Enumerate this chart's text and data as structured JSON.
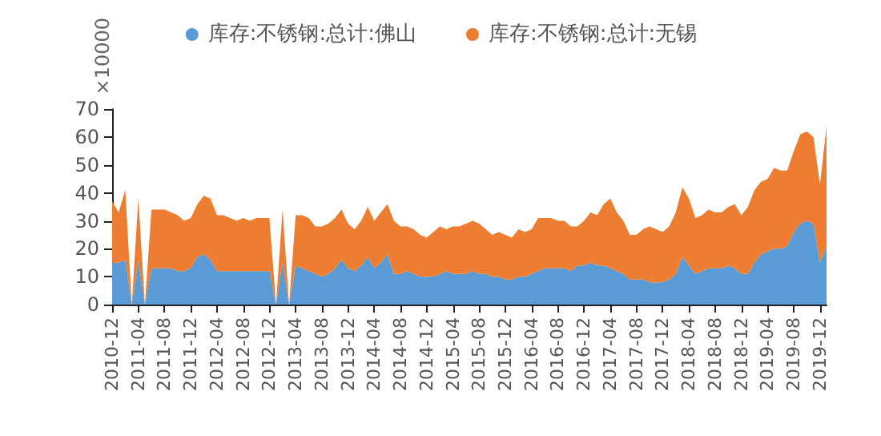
{
  "chart_data": {
    "type": "area",
    "stacked": true,
    "ylabel": "×10000",
    "ylim": [
      0,
      70
    ],
    "yticks": [
      0,
      10,
      20,
      30,
      40,
      50,
      60,
      70
    ],
    "grid": false,
    "legend": "top",
    "marker": "none",
    "categories": [
      "2010-12",
      null,
      null,
      null,
      "2011-04",
      null,
      null,
      null,
      "2011-08",
      null,
      null,
      null,
      "2011-12",
      null,
      null,
      null,
      "2012-04",
      null,
      null,
      null,
      "2012-08",
      null,
      null,
      null,
      "2012-12",
      null,
      null,
      null,
      "2013-04",
      null,
      null,
      null,
      "2013-08",
      null,
      null,
      null,
      "2013-12",
      null,
      null,
      null,
      "2014-04",
      null,
      null,
      null,
      "2014-08",
      null,
      null,
      null,
      "2014-12",
      null,
      null,
      null,
      "2015-04",
      null,
      null,
      null,
      "2015-08",
      null,
      null,
      null,
      "2015-12",
      null,
      null,
      null,
      "2016-04",
      null,
      null,
      null,
      "2016-08",
      null,
      null,
      null,
      "2016-12",
      null,
      null,
      null,
      "2017-04",
      null,
      null,
      null,
      "2017-08",
      null,
      null,
      null,
      "2017-12",
      null,
      null,
      null,
      "2018-04",
      null,
      null,
      null,
      "2018-08",
      null,
      null,
      null,
      "2018-12",
      null,
      null,
      null,
      "2019-04",
      null,
      null,
      null,
      "2019-08",
      null,
      null,
      null,
      "2019-12",
      null
    ],
    "series": [
      {
        "name": "库存:不锈钢:总计:佛山",
        "color": "#5b9bd5",
        "values": [
          15,
          15,
          16,
          0,
          16,
          0,
          13,
          13,
          13,
          13,
          12,
          12,
          13,
          17,
          18,
          16,
          12,
          12,
          12,
          12,
          12,
          12,
          12,
          12,
          12,
          0,
          15,
          0,
          14,
          13,
          12,
          11,
          10,
          11,
          13,
          16,
          13,
          12,
          14,
          17,
          13,
          15,
          18,
          11,
          11,
          12,
          11,
          10,
          10,
          10,
          11,
          12,
          11,
          11,
          11,
          12,
          11,
          11,
          10,
          10,
          9,
          9,
          10,
          10,
          11,
          12,
          13,
          13,
          13,
          13,
          12,
          14,
          14,
          15,
          14,
          14,
          13,
          12,
          11,
          9,
          9,
          9,
          8,
          8,
          8,
          9,
          11,
          17,
          14,
          11,
          12,
          13,
          13,
          13,
          14,
          13,
          11,
          11,
          15,
          18,
          19,
          20,
          20,
          21,
          26,
          29,
          30,
          29,
          15,
          21
        ]
      },
      {
        "name": "库存:不锈钢:总计:无锡",
        "color": "#ed7d31",
        "values": [
          22,
          18,
          25,
          0,
          22,
          0,
          21,
          21,
          21,
          20,
          20,
          18,
          18,
          19,
          21,
          22,
          20,
          20,
          19,
          18,
          19,
          18,
          19,
          19,
          19,
          0,
          19,
          0,
          18,
          19,
          19,
          17,
          18,
          18,
          18,
          18,
          16,
          15,
          16,
          18,
          17,
          18,
          18,
          19,
          17,
          16,
          16,
          15,
          14,
          16,
          17,
          15,
          17,
          17,
          18,
          18,
          18,
          16,
          15,
          16,
          16,
          15,
          17,
          16,
          16,
          19,
          18,
          18,
          17,
          17,
          16,
          14,
          16,
          18,
          18,
          22,
          25,
          21,
          19,
          16,
          16,
          18,
          20,
          19,
          18,
          19,
          22,
          25,
          24,
          20,
          20,
          21,
          20,
          20,
          21,
          23,
          21,
          24,
          26,
          26,
          26,
          29,
          28,
          27,
          29,
          32,
          32,
          31,
          28,
          43
        ]
      }
    ]
  }
}
